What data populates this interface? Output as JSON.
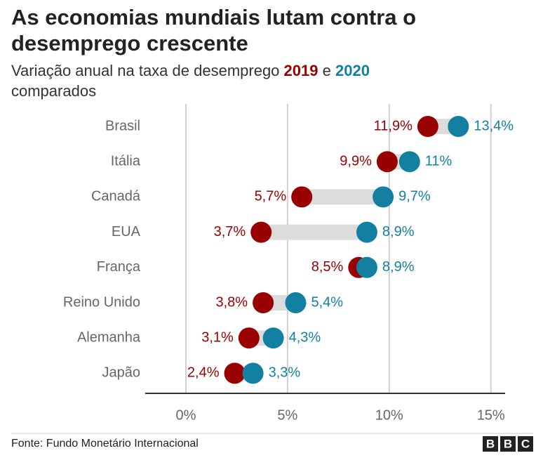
{
  "chart_data": {
    "type": "dumbbell",
    "title": "As economias mundiais lutam contra o desemprego crescente",
    "subtitle": [
      "Variação anual na taxa de desemprego",
      "e",
      "comparados"
    ],
    "categories": [
      "Brasil",
      "Itália",
      "Canadá",
      "EUA",
      "França",
      "Reino Unido",
      "Alemanha",
      "Japão"
    ],
    "series": [
      {
        "name": "2019",
        "color": "#990000",
        "values": [
          11.9,
          9.9,
          5.7,
          3.7,
          8.5,
          3.8,
          3.1,
          2.4
        ],
        "value_labels": [
          "11,9%",
          "9,9%",
          "5,7%",
          "3,7%",
          "8,5%",
          "3,8%",
          "3,1%",
          "2,4%"
        ]
      },
      {
        "name": "2020",
        "color": "#1380a1",
        "values": [
          13.4,
          11,
          9.7,
          8.9,
          8.9,
          5.4,
          4.3,
          3.3
        ],
        "value_labels": [
          "13,4%",
          "11%",
          "9,7%",
          "8,9%",
          "8,9%",
          "5,4%",
          "4,3%",
          "3,3%"
        ]
      }
    ],
    "xlim": [
      -2,
      15.7
    ],
    "xticks": [
      {
        "value": 0,
        "label": "0%"
      },
      {
        "value": 5,
        "label": "5%"
      },
      {
        "value": 10,
        "label": "10%"
      },
      {
        "value": 15,
        "label": "15%"
      }
    ],
    "grid": true,
    "source": "Fonte: Fundo Monetário Internacional",
    "logo": [
      "B",
      "B",
      "C"
    ]
  }
}
